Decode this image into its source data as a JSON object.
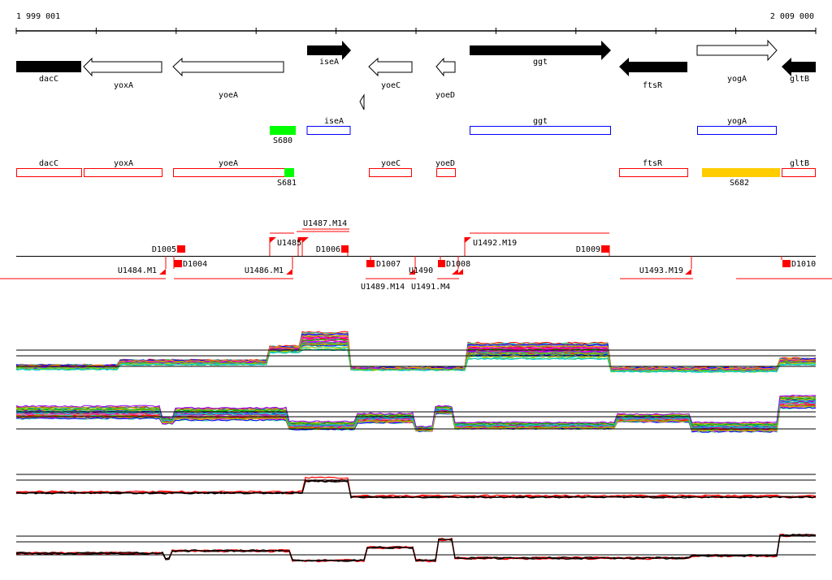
{
  "ruler": {
    "start_label": "1 999 001",
    "end_label": "2 009 000"
  },
  "genes": [
    {
      "name": "dacC",
      "strand": "-",
      "fill": "black"
    },
    {
      "name": "yoxA",
      "strand": "-",
      "fill": "white"
    },
    {
      "name": "yoeA",
      "strand": "-",
      "fill": "white"
    },
    {
      "name": "iseA",
      "strand": "+",
      "fill": "black"
    },
    {
      "name": "yoeC",
      "strand": "-",
      "fill": "white"
    },
    {
      "name": "yoeD",
      "strand": "-",
      "fill": "white"
    },
    {
      "name": "ggt",
      "strand": "+",
      "fill": "black"
    },
    {
      "name": "ftsR",
      "strand": "-",
      "fill": "black"
    },
    {
      "name": "yogA",
      "strand": "+",
      "fill": "white"
    },
    {
      "name": "gltB",
      "strand": "-",
      "fill": "black"
    }
  ],
  "forward_track": {
    "boxes": [
      "iseA",
      "ggt",
      "yogA"
    ],
    "sites": [
      "S680"
    ]
  },
  "reverse_track": {
    "boxes": [
      "dacC",
      "yoxA",
      "yoeA",
      "yoeC",
      "yoeD",
      "ftsR",
      "gltB"
    ],
    "sites": [
      "S681",
      "S682"
    ]
  },
  "segments": {
    "above": [
      "D1005",
      "U1485",
      "U1487.M14",
      "D1006",
      "U1492.M19",
      "D1009"
    ],
    "below": [
      "D1004",
      "U1484.M1",
      "U1486.M1",
      "D1007",
      "U1489.M14",
      "U1490",
      "U1491.M4",
      "D1008",
      "U1493.M19",
      "D1010"
    ]
  },
  "colors": {
    "forward": "#0000ff",
    "reverse": "#ff0000",
    "site_green": "#00ff00",
    "site_yellow": "#ffcc00",
    "segment": "#ff0000"
  }
}
